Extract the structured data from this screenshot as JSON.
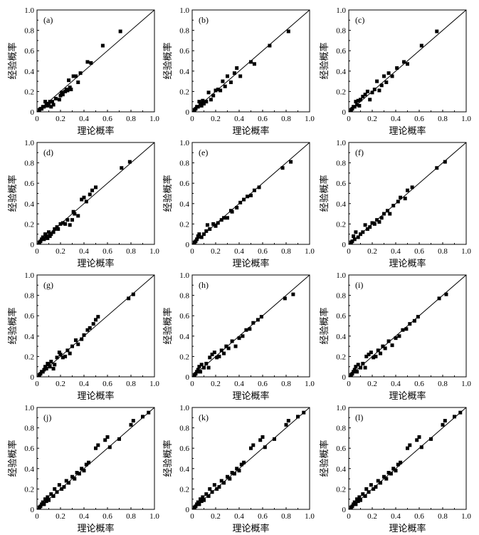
{
  "figure": {
    "xlabel": "理论概率",
    "ylabel": "经验概率",
    "tick_labels": [
      "0",
      "0.2",
      "0.4",
      "0.6",
      "0.8",
      "1.0"
    ]
  },
  "chart_data": [
    {
      "type": "scatter",
      "panel": "(a)",
      "xlabel": "理论概率",
      "ylabel": "经验概率",
      "xlim": [
        0,
        1
      ],
      "ylim": [
        0,
        1
      ],
      "reference_line": "y = x",
      "series": [
        {
          "x": [
            0.02,
            0.03,
            0.04,
            0.05,
            0.06,
            0.07,
            0.08,
            0.09,
            0.1,
            0.11,
            0.12,
            0.13,
            0.14,
            0.16,
            0.19,
            0.2,
            0.21,
            0.22,
            0.24,
            0.25,
            0.26,
            0.27,
            0.28,
            0.29,
            0.31,
            0.33,
            0.35,
            0.37,
            0.43,
            0.46,
            0.56,
            0.71
          ],
          "y": [
            0.02,
            0.03,
            0.03,
            0.05,
            0.05,
            0.1,
            0.08,
            0.06,
            0.08,
            0.1,
            0.05,
            0.1,
            0.07,
            0.13,
            0.12,
            0.16,
            0.19,
            0.17,
            0.2,
            0.22,
            0.21,
            0.31,
            0.24,
            0.22,
            0.35,
            0.35,
            0.29,
            0.38,
            0.49,
            0.48,
            0.65,
            0.79
          ]
        }
      ]
    },
    {
      "type": "scatter",
      "panel": "(b)",
      "xlabel": "理论概率",
      "ylabel": "经验概率",
      "xlim": [
        0,
        1
      ],
      "ylim": [
        0,
        1
      ],
      "reference_line": "y = x",
      "series": [
        {
          "x": [
            0.02,
            0.03,
            0.04,
            0.05,
            0.06,
            0.07,
            0.08,
            0.09,
            0.1,
            0.12,
            0.14,
            0.16,
            0.18,
            0.2,
            0.22,
            0.24,
            0.26,
            0.28,
            0.3,
            0.33,
            0.36,
            0.38,
            0.41,
            0.5,
            0.53,
            0.66,
            0.82
          ],
          "y": [
            0.02,
            0.03,
            0.05,
            0.05,
            0.1,
            0.08,
            0.06,
            0.11,
            0.08,
            0.1,
            0.19,
            0.12,
            0.16,
            0.21,
            0.22,
            0.21,
            0.3,
            0.25,
            0.35,
            0.29,
            0.38,
            0.43,
            0.35,
            0.49,
            0.47,
            0.65,
            0.79
          ]
        }
      ]
    },
    {
      "type": "scatter",
      "panel": "(c)",
      "xlabel": "理论概率",
      "ylabel": "经验概率",
      "xlim": [
        0,
        1
      ],
      "ylim": [
        0,
        1
      ],
      "reference_line": "y = x",
      "series": [
        {
          "x": [
            0.02,
            0.03,
            0.04,
            0.05,
            0.06,
            0.07,
            0.08,
            0.09,
            0.1,
            0.12,
            0.14,
            0.16,
            0.18,
            0.2,
            0.22,
            0.24,
            0.26,
            0.28,
            0.3,
            0.32,
            0.34,
            0.37,
            0.41,
            0.47,
            0.5,
            0.62,
            0.75
          ],
          "y": [
            0.02,
            0.03,
            0.05,
            0.05,
            0.1,
            0.07,
            0.11,
            0.06,
            0.12,
            0.15,
            0.17,
            0.2,
            0.12,
            0.19,
            0.22,
            0.3,
            0.21,
            0.26,
            0.35,
            0.29,
            0.38,
            0.35,
            0.43,
            0.49,
            0.47,
            0.65,
            0.79
          ]
        }
      ]
    },
    {
      "type": "scatter",
      "panel": "(d)",
      "xlabel": "理论概率",
      "ylabel": "经验概率",
      "xlim": [
        0,
        1
      ],
      "ylim": [
        0,
        1
      ],
      "reference_line": "y = x",
      "series": [
        {
          "x": [
            0.02,
            0.03,
            0.04,
            0.05,
            0.06,
            0.07,
            0.08,
            0.09,
            0.1,
            0.11,
            0.12,
            0.14,
            0.15,
            0.17,
            0.18,
            0.2,
            0.22,
            0.24,
            0.26,
            0.28,
            0.3,
            0.31,
            0.32,
            0.35,
            0.38,
            0.4,
            0.42,
            0.45,
            0.47,
            0.5,
            0.72,
            0.79
          ],
          "y": [
            0.02,
            0.03,
            0.05,
            0.07,
            0.05,
            0.1,
            0.08,
            0.06,
            0.12,
            0.08,
            0.1,
            0.12,
            0.15,
            0.17,
            0.15,
            0.2,
            0.21,
            0.2,
            0.24,
            0.19,
            0.24,
            0.32,
            0.3,
            0.28,
            0.44,
            0.46,
            0.42,
            0.49,
            0.53,
            0.56,
            0.75,
            0.81
          ]
        }
      ]
    },
    {
      "type": "scatter",
      "panel": "(e)",
      "xlabel": "理论概率",
      "ylabel": "经验概率",
      "xlim": [
        0,
        1
      ],
      "ylim": [
        0,
        1
      ],
      "reference_line": "y = x",
      "series": [
        {
          "x": [
            0.02,
            0.03,
            0.04,
            0.05,
            0.06,
            0.08,
            0.1,
            0.12,
            0.13,
            0.15,
            0.18,
            0.2,
            0.22,
            0.25,
            0.27,
            0.3,
            0.33,
            0.34,
            0.38,
            0.41,
            0.44,
            0.47,
            0.5,
            0.53,
            0.57,
            0.77,
            0.84
          ],
          "y": [
            0.02,
            0.03,
            0.05,
            0.08,
            0.1,
            0.07,
            0.1,
            0.13,
            0.19,
            0.15,
            0.2,
            0.18,
            0.21,
            0.24,
            0.26,
            0.26,
            0.33,
            0.32,
            0.36,
            0.41,
            0.44,
            0.47,
            0.48,
            0.53,
            0.56,
            0.75,
            0.81
          ]
        }
      ]
    },
    {
      "type": "scatter",
      "panel": "(f)",
      "xlabel": "理论概率",
      "ylabel": "经验概率",
      "xlim": [
        0,
        1
      ],
      "ylim": [
        0,
        1
      ],
      "reference_line": "y = x",
      "series": [
        {
          "x": [
            0.02,
            0.03,
            0.04,
            0.05,
            0.06,
            0.08,
            0.1,
            0.12,
            0.14,
            0.16,
            0.18,
            0.2,
            0.22,
            0.24,
            0.26,
            0.28,
            0.3,
            0.33,
            0.35,
            0.38,
            0.42,
            0.44,
            0.48,
            0.5,
            0.54,
            0.75,
            0.82
          ],
          "y": [
            0.02,
            0.03,
            0.08,
            0.05,
            0.12,
            0.07,
            0.1,
            0.12,
            0.19,
            0.15,
            0.17,
            0.21,
            0.2,
            0.24,
            0.22,
            0.26,
            0.3,
            0.33,
            0.3,
            0.38,
            0.42,
            0.46,
            0.45,
            0.53,
            0.56,
            0.75,
            0.81
          ]
        }
      ]
    },
    {
      "type": "scatter",
      "panel": "(g)",
      "xlabel": "理论概率",
      "ylabel": "经验概率",
      "xlim": [
        0,
        1
      ],
      "ylim": [
        0,
        1
      ],
      "reference_line": "y = x",
      "series": [
        {
          "x": [
            0.02,
            0.03,
            0.04,
            0.05,
            0.06,
            0.07,
            0.08,
            0.09,
            0.1,
            0.11,
            0.12,
            0.14,
            0.15,
            0.17,
            0.19,
            0.2,
            0.22,
            0.24,
            0.26,
            0.28,
            0.3,
            0.33,
            0.35,
            0.38,
            0.4,
            0.43,
            0.45,
            0.48,
            0.5,
            0.52,
            0.78,
            0.82
          ],
          "y": [
            0.02,
            0.03,
            0.05,
            0.05,
            0.07,
            0.1,
            0.08,
            0.13,
            0.12,
            0.1,
            0.15,
            0.08,
            0.12,
            0.19,
            0.24,
            0.22,
            0.19,
            0.2,
            0.26,
            0.23,
            0.3,
            0.36,
            0.32,
            0.37,
            0.41,
            0.46,
            0.48,
            0.52,
            0.56,
            0.59,
            0.77,
            0.81
          ]
        }
      ]
    },
    {
      "type": "scatter",
      "panel": "(h)",
      "xlabel": "理论概率",
      "ylabel": "经验概率",
      "xlim": [
        0,
        1
      ],
      "ylim": [
        0,
        1
      ],
      "reference_line": "y = x",
      "series": [
        {
          "x": [
            0.02,
            0.03,
            0.04,
            0.05,
            0.06,
            0.07,
            0.08,
            0.1,
            0.12,
            0.14,
            0.15,
            0.17,
            0.19,
            0.21,
            0.23,
            0.25,
            0.27,
            0.29,
            0.31,
            0.34,
            0.37,
            0.4,
            0.43,
            0.46,
            0.49,
            0.52,
            0.56,
            0.59,
            0.79,
            0.86
          ],
          "y": [
            0.02,
            0.03,
            0.05,
            0.07,
            0.1,
            0.05,
            0.12,
            0.09,
            0.13,
            0.09,
            0.19,
            0.22,
            0.24,
            0.19,
            0.2,
            0.26,
            0.23,
            0.3,
            0.28,
            0.35,
            0.3,
            0.38,
            0.4,
            0.46,
            0.47,
            0.53,
            0.56,
            0.59,
            0.77,
            0.81
          ]
        }
      ]
    },
    {
      "type": "scatter",
      "panel": "(i)",
      "xlabel": "理论概率",
      "ylabel": "经验概率",
      "xlim": [
        0,
        1
      ],
      "ylim": [
        0,
        1
      ],
      "reference_line": "y = x",
      "series": [
        {
          "x": [
            0.02,
            0.03,
            0.04,
            0.05,
            0.06,
            0.07,
            0.08,
            0.1,
            0.12,
            0.14,
            0.15,
            0.17,
            0.19,
            0.21,
            0.23,
            0.25,
            0.27,
            0.29,
            0.31,
            0.34,
            0.37,
            0.4,
            0.43,
            0.46,
            0.49,
            0.52,
            0.56,
            0.59,
            0.77,
            0.83
          ],
          "y": [
            0.02,
            0.03,
            0.05,
            0.07,
            0.1,
            0.05,
            0.12,
            0.09,
            0.13,
            0.09,
            0.2,
            0.22,
            0.24,
            0.19,
            0.2,
            0.26,
            0.23,
            0.3,
            0.28,
            0.35,
            0.31,
            0.38,
            0.4,
            0.46,
            0.47,
            0.52,
            0.55,
            0.59,
            0.77,
            0.81
          ]
        }
      ]
    },
    {
      "type": "scatter",
      "panel": "(j)",
      "xlabel": "理论概率",
      "ylabel": "经验概率",
      "xlim": [
        0,
        1
      ],
      "ylim": [
        0,
        1
      ],
      "reference_line": "y = x",
      "series": [
        {
          "x": [
            0.02,
            0.03,
            0.04,
            0.05,
            0.06,
            0.07,
            0.08,
            0.09,
            0.1,
            0.12,
            0.14,
            0.15,
            0.17,
            0.19,
            0.21,
            0.23,
            0.25,
            0.27,
            0.3,
            0.32,
            0.34,
            0.36,
            0.38,
            0.4,
            0.42,
            0.44,
            0.5,
            0.52,
            0.58,
            0.6,
            0.62,
            0.7,
            0.8,
            0.82,
            0.9,
            0.95
          ],
          "y": [
            0.02,
            0.03,
            0.05,
            0.07,
            0.05,
            0.1,
            0.08,
            0.12,
            0.09,
            0.15,
            0.13,
            0.2,
            0.17,
            0.24,
            0.2,
            0.22,
            0.28,
            0.26,
            0.32,
            0.3,
            0.36,
            0.35,
            0.4,
            0.38,
            0.44,
            0.46,
            0.6,
            0.63,
            0.68,
            0.71,
            0.61,
            0.69,
            0.83,
            0.87,
            0.91,
            0.95
          ]
        }
      ]
    },
    {
      "type": "scatter",
      "panel": "(k)",
      "xlabel": "理论概率",
      "ylabel": "经验概率",
      "xlim": [
        0,
        1
      ],
      "ylim": [
        0,
        1
      ],
      "reference_line": "y = x",
      "series": [
        {
          "x": [
            0.02,
            0.03,
            0.04,
            0.05,
            0.06,
            0.07,
            0.08,
            0.09,
            0.1,
            0.12,
            0.14,
            0.15,
            0.17,
            0.19,
            0.21,
            0.23,
            0.25,
            0.27,
            0.3,
            0.32,
            0.34,
            0.36,
            0.38,
            0.4,
            0.42,
            0.44,
            0.5,
            0.52,
            0.58,
            0.6,
            0.62,
            0.7,
            0.8,
            0.82,
            0.9,
            0.95
          ],
          "y": [
            0.02,
            0.03,
            0.05,
            0.07,
            0.05,
            0.1,
            0.08,
            0.12,
            0.09,
            0.15,
            0.13,
            0.2,
            0.17,
            0.24,
            0.2,
            0.22,
            0.28,
            0.26,
            0.32,
            0.3,
            0.36,
            0.35,
            0.4,
            0.38,
            0.44,
            0.46,
            0.6,
            0.63,
            0.68,
            0.71,
            0.61,
            0.69,
            0.83,
            0.87,
            0.91,
            0.95
          ]
        }
      ]
    },
    {
      "type": "scatter",
      "panel": "(l)",
      "xlabel": "理论概率",
      "ylabel": "经验概率",
      "xlim": [
        0,
        1
      ],
      "ylim": [
        0,
        1
      ],
      "reference_line": "y = x",
      "series": [
        {
          "x": [
            0.02,
            0.03,
            0.04,
            0.05,
            0.06,
            0.07,
            0.08,
            0.09,
            0.1,
            0.12,
            0.14,
            0.15,
            0.17,
            0.19,
            0.21,
            0.23,
            0.25,
            0.27,
            0.3,
            0.32,
            0.34,
            0.36,
            0.38,
            0.4,
            0.42,
            0.44,
            0.5,
            0.52,
            0.58,
            0.6,
            0.62,
            0.7,
            0.8,
            0.82,
            0.9,
            0.95
          ],
          "y": [
            0.02,
            0.03,
            0.05,
            0.07,
            0.05,
            0.1,
            0.08,
            0.12,
            0.09,
            0.15,
            0.13,
            0.2,
            0.17,
            0.24,
            0.2,
            0.22,
            0.28,
            0.26,
            0.32,
            0.3,
            0.36,
            0.35,
            0.4,
            0.38,
            0.44,
            0.46,
            0.6,
            0.63,
            0.68,
            0.71,
            0.61,
            0.69,
            0.83,
            0.87,
            0.91,
            0.95
          ]
        }
      ]
    }
  ]
}
